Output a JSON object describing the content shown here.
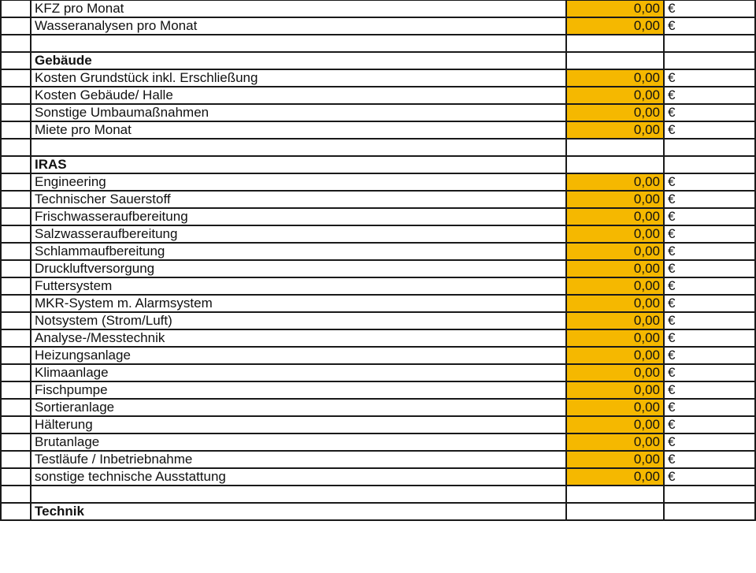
{
  "colors": {
    "input_fill": "#f5b800",
    "section_title": "#c0161b",
    "grid_line": "#1a1a1a"
  },
  "currency": "€",
  "rows": [
    {
      "type": "item",
      "label": "KFZ pro Monat",
      "value": "0,00"
    },
    {
      "type": "item",
      "label": "Wasseranalysen pro Monat",
      "value": "0,00"
    },
    {
      "type": "blank"
    },
    {
      "type": "section",
      "label": "Gebäude"
    },
    {
      "type": "item",
      "label": "Kosten Grundstück inkl. Erschließung",
      "value": "0,00"
    },
    {
      "type": "item",
      "label": "Kosten Gebäude/ Halle",
      "value": "0,00"
    },
    {
      "type": "item",
      "label": "Sonstige Umbaumaßnahmen",
      "value": "0,00"
    },
    {
      "type": "item",
      "label": "Miete pro Monat",
      "value": "0,00"
    },
    {
      "type": "blank"
    },
    {
      "type": "section",
      "label": "IRAS"
    },
    {
      "type": "item",
      "label": "Engineering",
      "value": "0,00"
    },
    {
      "type": "item",
      "label": "Technischer Sauerstoff",
      "value": "0,00"
    },
    {
      "type": "item",
      "label": "Frischwasseraufbereitung",
      "value": "0,00"
    },
    {
      "type": "item",
      "label": "Salzwasseraufbereitung",
      "value": "0,00"
    },
    {
      "type": "item",
      "label": "Schlammaufbereitung",
      "value": "0,00"
    },
    {
      "type": "item",
      "label": "Druckluftversorgung",
      "value": "0,00"
    },
    {
      "type": "item",
      "label": "Futtersystem",
      "value": "0,00"
    },
    {
      "type": "item",
      "label": "MKR-System m. Alarmsystem",
      "value": "0,00"
    },
    {
      "type": "item",
      "label": "Notsystem (Strom/Luft)",
      "value": "0,00"
    },
    {
      "type": "item",
      "label": "Analyse-/Messtechnik",
      "value": "0,00"
    },
    {
      "type": "item",
      "label": "Heizungsanlage",
      "value": "0,00"
    },
    {
      "type": "item",
      "label": "Klimaanlage",
      "value": "0,00"
    },
    {
      "type": "item",
      "label": "Fischpumpe",
      "value": "0,00"
    },
    {
      "type": "item",
      "label": "Sortieranlage",
      "value": "0,00"
    },
    {
      "type": "item",
      "label": "Hälterung",
      "value": "0,00"
    },
    {
      "type": "item",
      "label": "Brutanlage",
      "value": "0,00"
    },
    {
      "type": "item",
      "label": "Testläufe / Inbetriebnahme",
      "value": "0,00"
    },
    {
      "type": "item",
      "label": "sonstige technische Ausstattung",
      "value": "0,00"
    },
    {
      "type": "blank"
    },
    {
      "type": "section",
      "label": "Technik"
    }
  ]
}
